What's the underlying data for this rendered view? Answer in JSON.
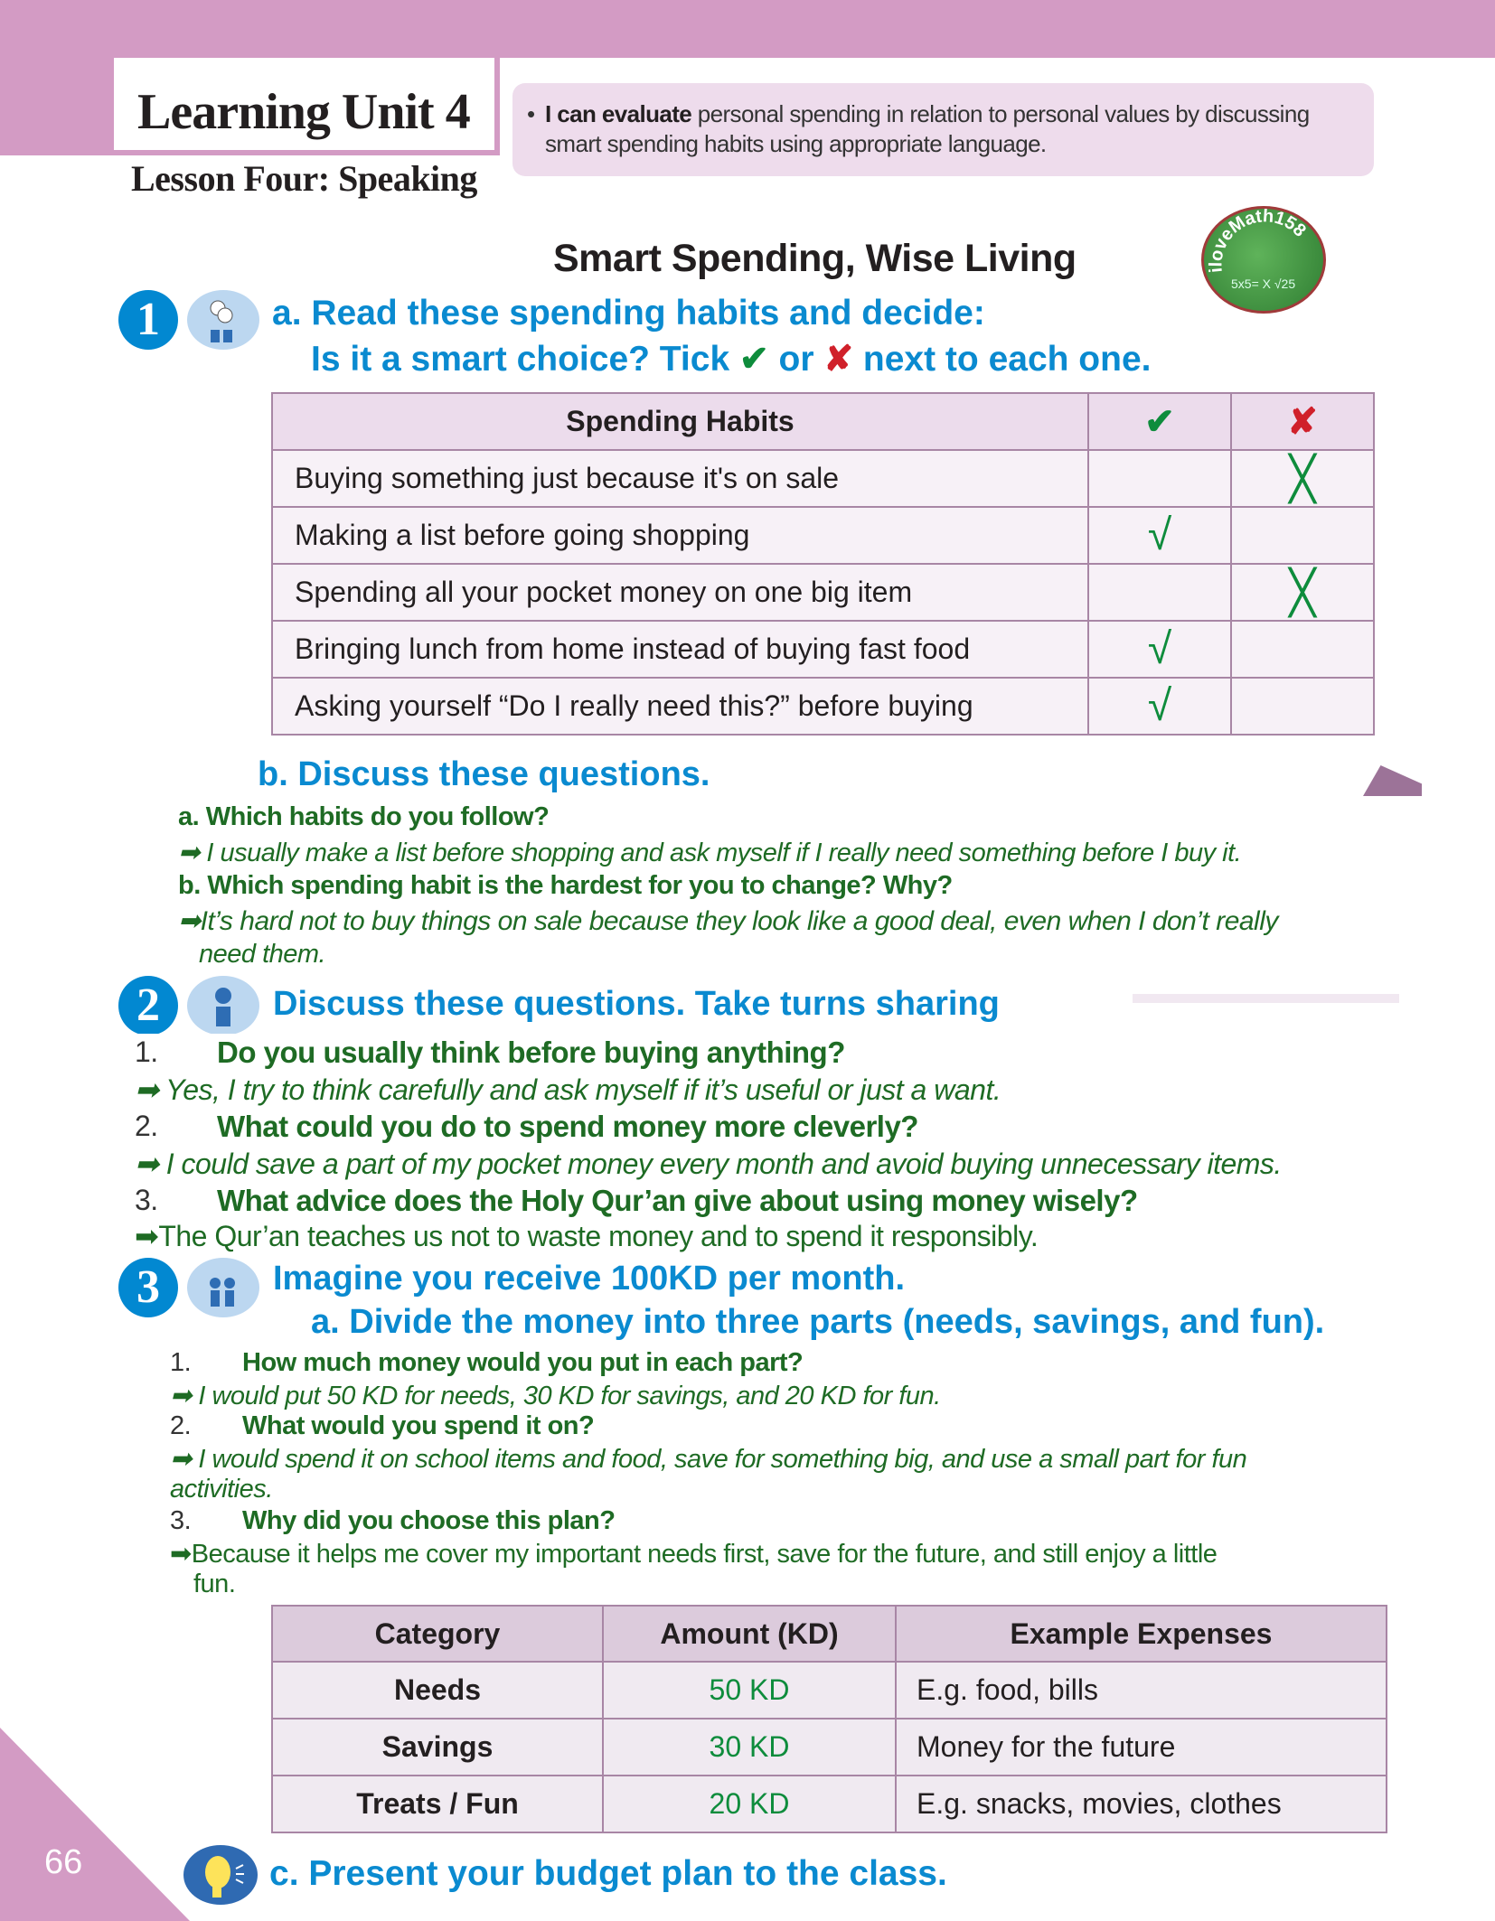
{
  "header": {
    "unit_title": "Learning Unit 4",
    "lesson_title": "Lesson Four: Speaking",
    "objective": {
      "bold": "I can evaluate",
      "rest": " personal spending in relation to personal values by discussing smart spending habits using appropriate language."
    }
  },
  "title": "Smart Spending, Wise Living",
  "logo_text": "iloveMath158",
  "section1": {
    "number": "1",
    "instruction_a": "a. Read these spending habits and decide:",
    "instruction_a2_pre": "Is it a smart choice? Tick",
    "instruction_a2_or": "or",
    "instruction_a2_post": "next to each one.",
    "table": {
      "headers": [
        "Spending Habits",
        "✔",
        "✘"
      ],
      "rows": [
        {
          "habit": "Buying something just because it's on sale",
          "tick": "",
          "cross": "╳"
        },
        {
          "habit": "Making a list before going shopping",
          "tick": "√",
          "cross": ""
        },
        {
          "habit": "Spending all your pocket money on one big item",
          "tick": "",
          "cross": "╳"
        },
        {
          "habit": "Bringing lunch from home instead of buying fast food",
          "tick": "√",
          "cross": ""
        },
        {
          "habit": "Asking yourself “Do I really need this?” before buying",
          "tick": "√",
          "cross": ""
        }
      ]
    },
    "instruction_b": "b. Discuss these questions.",
    "answers_b": [
      {
        "q": "a. Which habits do you follow?",
        "a": "➡ I usually make a list before shopping and ask myself if I really need something before I buy it."
      },
      {
        "q": "b. Which spending habit is the hardest for you to change? Why?",
        "a": "➡It’s hard not to buy things on sale because they look like a good deal, even when I don’t really",
        "a2": "need them."
      }
    ]
  },
  "section2": {
    "number": "2",
    "instruction": "Discuss these questions. Take turns sharing",
    "qa": [
      {
        "n": "1.",
        "q": "Do you usually think before buying anything?",
        "a": "➡ Yes, I try to think carefully and ask myself if it’s useful or just a want."
      },
      {
        "n": "2.",
        "q": "What could you do to spend money more cleverly?",
        "a": "➡ I could save a part of my pocket money every month and avoid buying unnecessary items."
      },
      {
        "n": "3.",
        "q": "What advice does the Holy Qur’an give about using money wisely?",
        "a": "➡The Qur’an teaches us not to waste money and to spend it responsibly."
      }
    ]
  },
  "section3": {
    "number": "3",
    "instruction": "Imagine you receive 100KD per month.",
    "instruction_a": "a. Divide the money into three parts (needs, savings, and fun).",
    "qa": [
      {
        "n": "1.",
        "q": "How much money would you put in each part?",
        "a": "➡ I would put 50 KD for needs, 30 KD for savings, and 20 KD for fun."
      },
      {
        "n": "2.",
        "q": "What would you spend it on?",
        "a": "➡ I would spend it on school items and food, save for something big, and use a small part for fun",
        "a2": "activities."
      },
      {
        "n": "3.",
        "q": "Why did you choose this plan?",
        "a": "➡Because it helps me cover my important needs first, save for the future, and still enjoy a little",
        "a2": "fun."
      }
    ],
    "table": {
      "headers": [
        "Category",
        "Amount (KD)",
        "Example Expenses"
      ],
      "rows": [
        {
          "category": "Needs",
          "amount": "50 KD",
          "example": "E.g. food, bills"
        },
        {
          "category": "Savings",
          "amount": "30 KD",
          "example": "Money for the future"
        },
        {
          "category": "Treats / Fun",
          "amount": "20 KD",
          "example": "E.g. snacks, movies, clothes"
        }
      ]
    },
    "instruction_c": "c. Present your budget plan to the class."
  },
  "page_number": "66",
  "colors": {
    "brand_pink": "#d39bc4",
    "heading_blue": "#0a8ad0",
    "answer_green": "#1e6b24",
    "tick_green": "#0e8c3c",
    "cross_red": "#d0202a"
  }
}
